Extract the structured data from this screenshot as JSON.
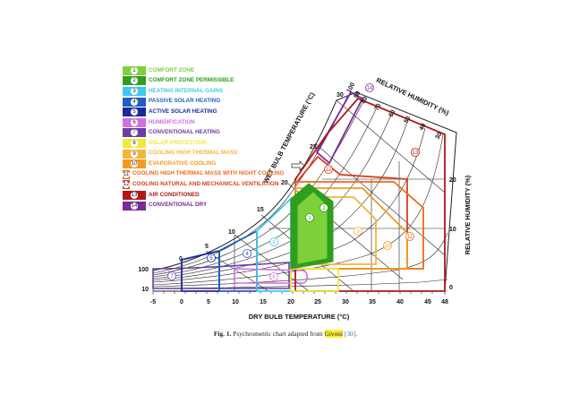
{
  "chart_title": "Psychrometric chart",
  "legend": [
    {
      "num": "1",
      "label": "COMFORT ZONE",
      "color": "#7fd13b"
    },
    {
      "num": "2",
      "label": "COMFORT ZONE PERMISSIBLE",
      "color": "#2e9e1e"
    },
    {
      "num": "3",
      "label": "HEATING INTERNAL GAINS",
      "color": "#40c8f0"
    },
    {
      "num": "4",
      "label": "PASSIVE SOLAR HEATING",
      "color": "#1f5fc0"
    },
    {
      "num": "5",
      "label": "ACTIVE SOLAR HEATING",
      "color": "#1a2a9a"
    },
    {
      "num": "6",
      "label": "HUMIDIFICATION",
      "color": "#d070e0"
    },
    {
      "num": "7",
      "label": "CONVENTIONAL HEATING",
      "color": "#6a3fa0"
    },
    {
      "num": "8",
      "label": "SOLAR PROTECTION",
      "color": "#f2e83a"
    },
    {
      "num": "9",
      "label": "COOLING HIGH THERMAL MASS",
      "color": "#f3b63a"
    },
    {
      "num": "10",
      "label": "EVAPORATIVE COOLING",
      "color": "#f39a20"
    },
    {
      "num": "11",
      "label": "COOLING HIGH THERMAL MASS WITH NIGHT COOLING",
      "color": "#ef6a1a"
    },
    {
      "num": "12",
      "label": "COOLING NATURAL AND MECHANICAL VENTILATION",
      "color": "#d8401a"
    },
    {
      "num": "13",
      "label": "AIR CONDITIONED",
      "color": "#b01818"
    },
    {
      "num": "14",
      "label": "CONVENTIONAL DRY",
      "color": "#7a2a9a"
    }
  ],
  "axes": {
    "x_title": "DRY BULB TEMPERATURE (°C)",
    "x_ticks": [
      "-5",
      "0",
      "5",
      "10",
      "15",
      "20",
      "25",
      "30",
      "35",
      "40",
      "45",
      "48"
    ],
    "x_range": [
      -5,
      48
    ],
    "right_title": "RELATIVE  HUMIDITY (%)",
    "right_ticks": [
      "0",
      "10",
      "20"
    ],
    "wet_bulb_title": "WET BULB TEMPERATURE (°C)",
    "wet_bulb_ticks": [
      "0",
      "5",
      "10",
      "15",
      "20",
      "25",
      "30"
    ],
    "rh_title": "RELATIVE  HUMIDITY (%)",
    "rh_ticks": [
      "100",
      "90",
      "80",
      "70",
      "60",
      "50",
      "40",
      "30"
    ],
    "left_ticks": [
      "100",
      "10"
    ]
  },
  "caption": {
    "fig": "Fig. 1.",
    "text_before": "Psychrometric chart adapted from ",
    "author": "Givoni",
    "ref": "[30]",
    "text_after": "."
  }
}
